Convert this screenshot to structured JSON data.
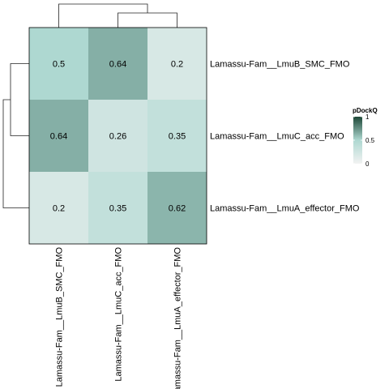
{
  "chart_data": {
    "type": "heatmap",
    "rows": [
      "Lamassu-Fam__LmuB_SMC_FMO",
      "Lamassu-Fam__LmuC_acc_FMO",
      "Lamassu-Fam__LmuA_effector_FMO"
    ],
    "columns": [
      "Lamassu-Fam__LmuB_SMC_FMO",
      "Lamassu-Fam__LmuC_acc_FMO",
      "Lamassu-Fam__LmuA_effector_FMO"
    ],
    "values": [
      [
        0.5,
        0.64,
        0.2
      ],
      [
        0.64,
        0.26,
        0.35
      ],
      [
        0.2,
        0.35,
        0.62
      ]
    ],
    "value_labels": [
      [
        "0.5",
        "0.64",
        "0.2"
      ],
      [
        "0.64",
        "0.26",
        "0.35"
      ],
      [
        "0.2",
        "0.35",
        "0.62"
      ]
    ],
    "legend": {
      "title": "pDockQ",
      "ticks": [
        0,
        0.5,
        1
      ],
      "tick_labels": [
        "0",
        "0.5",
        "1"
      ],
      "colors": [
        "#f2f2f2",
        "#aed8d1",
        "#1d4737"
      ],
      "range": [
        0,
        1
      ],
      "position": "right"
    },
    "dendrograms": {
      "column": {
        "merges": [
          [
            1,
            2
          ],
          [
            0,
            "c12"
          ]
        ]
      },
      "row": {
        "merges": [
          [
            0,
            1
          ],
          [
            2,
            "r01"
          ]
        ]
      }
    }
  }
}
